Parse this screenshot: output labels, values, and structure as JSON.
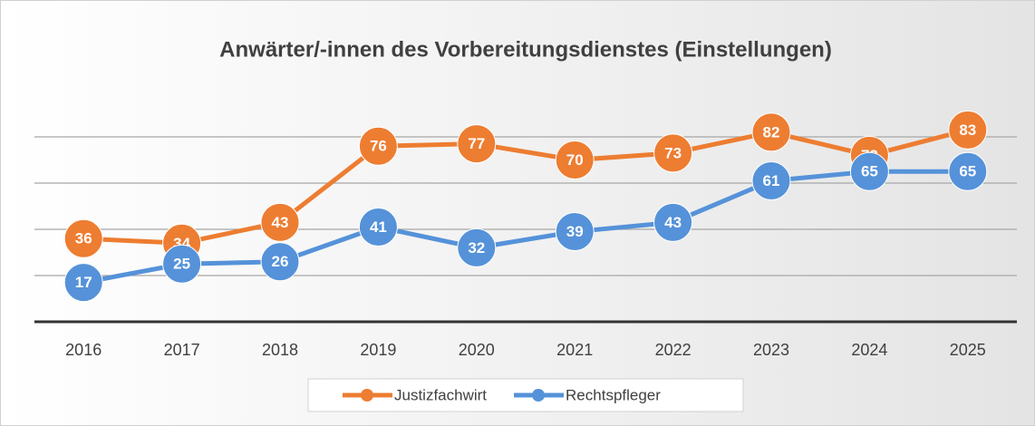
{
  "chart_data": {
    "type": "line",
    "title": "Anwärter/-innen des Vorbereitungsdienstes (Einstellungen)",
    "categories": [
      "2016",
      "2017",
      "2018",
      "2019",
      "2020",
      "2021",
      "2022",
      "2023",
      "2024",
      "2025"
    ],
    "series": [
      {
        "name": "Justizfachwirt",
        "color": "#ed7d31",
        "values": [
          36,
          34,
          43,
          76,
          77,
          70,
          73,
          82,
          72,
          83
        ]
      },
      {
        "name": "Rechtspfleger",
        "color": "#5592d9",
        "values": [
          17,
          25,
          26,
          41,
          32,
          39,
          43,
          61,
          65,
          65
        ]
      }
    ],
    "ylim": [
      0,
      100
    ],
    "yticks": [
      0,
      20,
      40,
      60,
      80
    ],
    "grid": true,
    "legend": "bottom"
  }
}
